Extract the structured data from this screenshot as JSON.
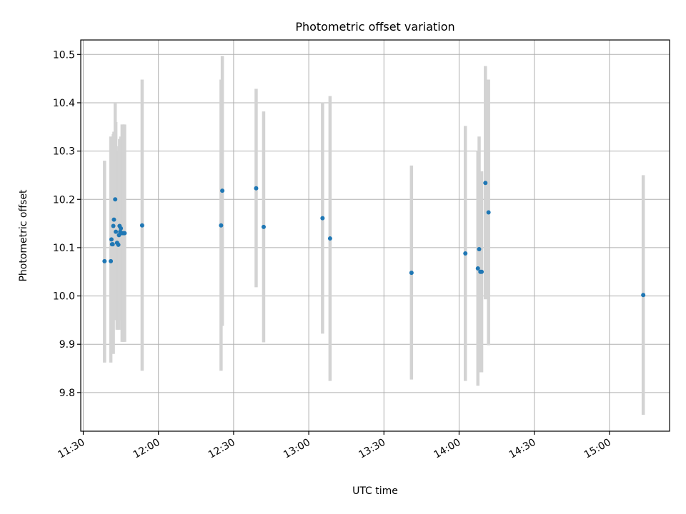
{
  "chart_data": {
    "type": "scatter",
    "title": "Photometric offset variation",
    "xlabel": "UTC time",
    "ylabel": "Photometric offset",
    "grid": true,
    "x_unit": "HH:MM UTC",
    "xlim": [
      "11:29",
      "15:24"
    ],
    "ylim": [
      9.72,
      10.53
    ],
    "x_ticks": [
      "11:30",
      "12:00",
      "12:30",
      "13:00",
      "13:30",
      "14:00",
      "14:30",
      "15:00"
    ],
    "y_ticks": [
      "9.8",
      "9.9",
      "10.0",
      "10.1",
      "10.2",
      "10.3",
      "10.4",
      "10.5"
    ],
    "colors": {
      "point": "#1f77b4",
      "error_bar": "#d3d3d3",
      "grid": "#b0b0b0"
    },
    "series": [
      {
        "points": [
          {
            "x": "11:38:30",
            "y": 10.072,
            "err_low": 9.862,
            "err_high": 10.28
          },
          {
            "x": "11:41:00",
            "y": 10.072,
            "err_low": 9.862,
            "err_high": 10.33
          },
          {
            "x": "11:41:15",
            "y": 10.117,
            "err_low": 9.9,
            "err_high": 10.32
          },
          {
            "x": "11:41:30",
            "y": 10.107,
            "err_low": 9.95,
            "err_high": 10.31
          },
          {
            "x": "11:41:45",
            "y": 10.107,
            "err_low": 9.95,
            "err_high": 10.32
          },
          {
            "x": "11:42:00",
            "y": 10.145,
            "err_low": 9.88,
            "err_high": 10.335
          },
          {
            "x": "11:42:15",
            "y": 10.158,
            "err_low": 9.98,
            "err_high": 10.34
          },
          {
            "x": "11:42:45",
            "y": 10.2,
            "err_low": 9.99,
            "err_high": 10.4
          },
          {
            "x": "11:43:00",
            "y": 10.133,
            "err_low": 9.95,
            "err_high": 10.36
          },
          {
            "x": "11:43:30",
            "y": 10.11,
            "err_low": 9.93,
            "err_high": 10.29
          },
          {
            "x": "11:44:00",
            "y": 10.106,
            "err_low": 9.935,
            "err_high": 10.3
          },
          {
            "x": "11:44:15",
            "y": 10.126,
            "err_low": 9.93,
            "err_high": 10.31
          },
          {
            "x": "11:44:30",
            "y": 10.145,
            "err_low": 9.95,
            "err_high": 10.325
          },
          {
            "x": "11:44:45",
            "y": 10.133,
            "err_low": 9.95,
            "err_high": 10.325
          },
          {
            "x": "11:45:00",
            "y": 10.14,
            "err_low": 9.955,
            "err_high": 10.33
          },
          {
            "x": "11:45:30",
            "y": 10.13,
            "err_low": 9.905,
            "err_high": 10.355
          },
          {
            "x": "11:46:00",
            "y": 10.13,
            "err_low": 9.905,
            "err_high": 10.355
          },
          {
            "x": "11:46:30",
            "y": 10.13,
            "err_low": 9.905,
            "err_high": 10.355
          },
          {
            "x": "11:53:30",
            "y": 10.146,
            "err_low": 9.845,
            "err_high": 10.448
          },
          {
            "x": "12:25:00",
            "y": 10.146,
            "err_low": 9.845,
            "err_high": 10.448
          },
          {
            "x": "12:25:30",
            "y": 10.218,
            "err_low": 9.938,
            "err_high": 10.497
          },
          {
            "x": "12:39:00",
            "y": 10.223,
            "err_low": 10.018,
            "err_high": 10.429
          },
          {
            "x": "12:42:00",
            "y": 10.143,
            "err_low": 9.904,
            "err_high": 10.382
          },
          {
            "x": "13:05:30",
            "y": 10.161,
            "err_low": 9.922,
            "err_high": 10.401
          },
          {
            "x": "13:08:30",
            "y": 10.119,
            "err_low": 9.824,
            "err_high": 10.414
          },
          {
            "x": "13:41:00",
            "y": 10.048,
            "err_low": 9.827,
            "err_high": 10.27
          },
          {
            "x": "14:02:30",
            "y": 10.088,
            "err_low": 9.824,
            "err_high": 10.352
          },
          {
            "x": "14:07:30",
            "y": 10.057,
            "err_low": 9.814,
            "err_high": 10.3
          },
          {
            "x": "14:08:00",
            "y": 10.097,
            "err_low": 9.865,
            "err_high": 10.33
          },
          {
            "x": "14:08:30",
            "y": 10.05,
            "err_low": 9.842,
            "err_high": 10.258
          },
          {
            "x": "14:09:00",
            "y": 10.05,
            "err_low": 9.842,
            "err_high": 10.258
          },
          {
            "x": "14:10:30",
            "y": 10.234,
            "err_low": 9.993,
            "err_high": 10.476
          },
          {
            "x": "14:11:45",
            "y": 10.173,
            "err_low": 9.898,
            "err_high": 10.448
          },
          {
            "x": "15:13:30",
            "y": 10.002,
            "err_low": 9.754,
            "err_high": 10.25
          }
        ]
      }
    ]
  }
}
